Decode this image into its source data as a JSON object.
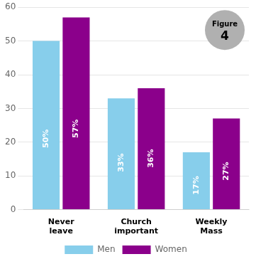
{
  "chart_data": {
    "type": "bar",
    "categories": [
      "Never\nleave",
      "Church\nimportant",
      "Weekly\nMass"
    ],
    "series": [
      {
        "name": "Men",
        "color": "#87CEEB",
        "values": [
          50,
          33,
          17
        ],
        "value_labels": [
          "50%",
          "33%",
          "17%"
        ]
      },
      {
        "name": "Women",
        "color": "#8B008B",
        "values": [
          57,
          36,
          27
        ],
        "value_labels": [
          "57%",
          "36%",
          "27%"
        ]
      }
    ],
    "ylim": [
      0,
      60
    ],
    "yticks": [
      0,
      10,
      20,
      30,
      40,
      50,
      60
    ],
    "grid": true,
    "legend": "bottom",
    "data_labels": true,
    "annotations": [
      "Figure",
      "4"
    ]
  }
}
